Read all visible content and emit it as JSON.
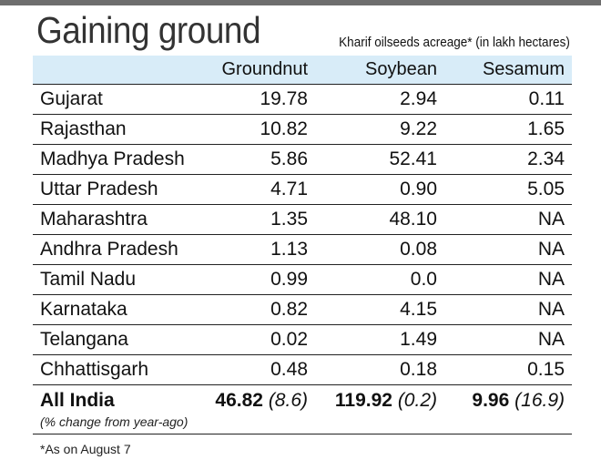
{
  "chart_data": {
    "type": "table",
    "title": "Gaining ground",
    "subtitle": "Kharif oilseeds acreage* (in lakh hectares)",
    "columns": [
      "",
      "Groundnut",
      "Soybean",
      "Sesamum"
    ],
    "rows": [
      {
        "state": "Gujarat",
        "values": [
          "19.78",
          "2.94",
          "0.11"
        ]
      },
      {
        "state": "Rajasthan",
        "values": [
          "10.82",
          "9.22",
          "1.65"
        ]
      },
      {
        "state": "Madhya Pradesh",
        "values": [
          "5.86",
          "52.41",
          "2.34"
        ]
      },
      {
        "state": "Uttar Pradesh",
        "values": [
          "4.71",
          "0.90",
          "5.05"
        ]
      },
      {
        "state": "Maharashtra",
        "values": [
          "1.35",
          "48.10",
          "NA"
        ]
      },
      {
        "state": "Andhra Pradesh",
        "values": [
          "1.13",
          "0.08",
          "NA"
        ]
      },
      {
        "state": "Tamil Nadu",
        "values": [
          "0.99",
          "0.0",
          "NA"
        ]
      },
      {
        "state": "Karnataka",
        "values": [
          "0.82",
          "4.15",
          "NA"
        ]
      },
      {
        "state": "Telangana",
        "values": [
          "0.02",
          "1.49",
          "NA"
        ]
      },
      {
        "state": "Chhattisgarh",
        "values": [
          "0.48",
          "0.18",
          "0.15"
        ]
      }
    ],
    "total": {
      "label": "All India",
      "note": "(% change from year-ago)",
      "values": [
        {
          "value": "46.82",
          "change": "(8.6)"
        },
        {
          "value": "119.92",
          "change": "(0.2)"
        },
        {
          "value": "9.96",
          "change": "(16.9)"
        }
      ]
    },
    "footnote": "*As on August 7"
  },
  "colors": {
    "header_bg": "#d8ecf8",
    "top_bar": "#6e6e6e",
    "title_text": "#333333"
  }
}
